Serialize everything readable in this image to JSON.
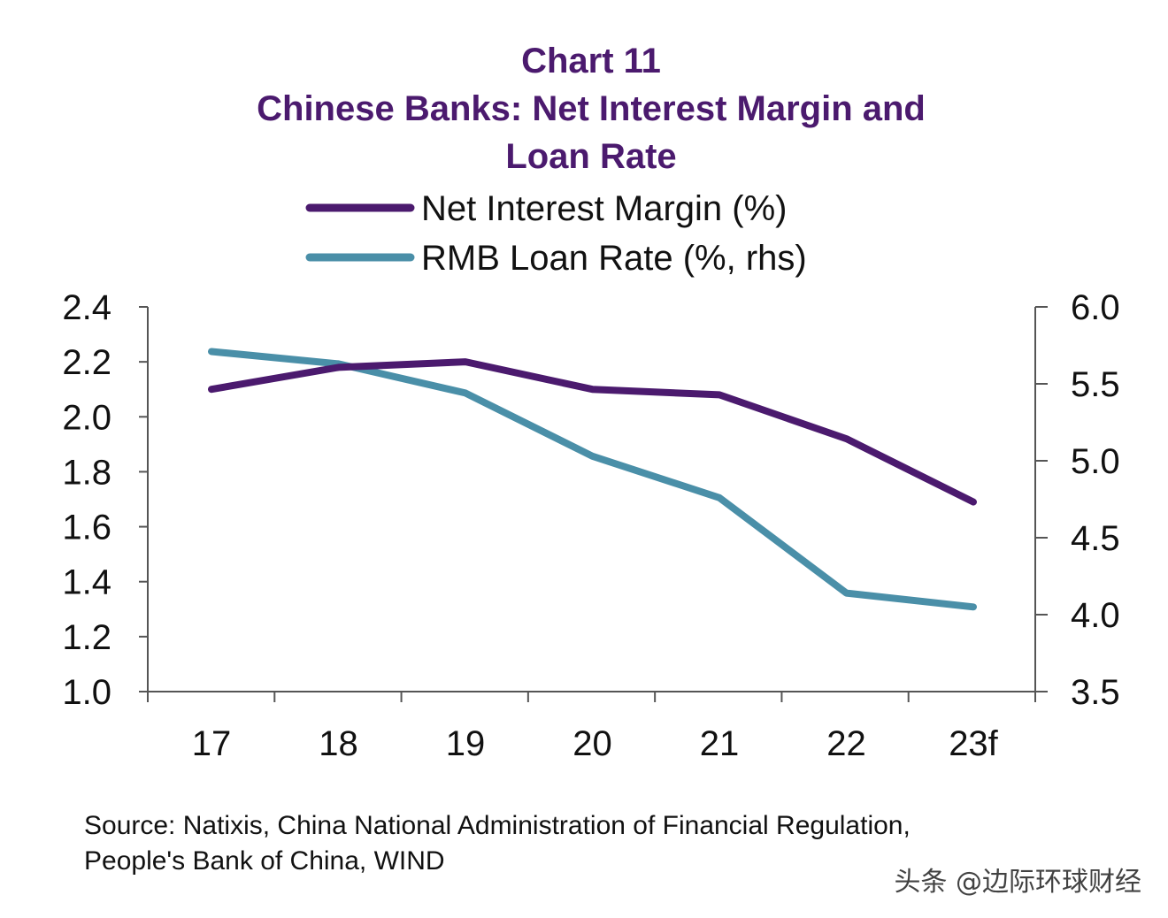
{
  "chart_data": {
    "type": "line",
    "title_lines": [
      "Chart 11",
      "Chinese Banks: Net Interest Margin and",
      "Loan Rate"
    ],
    "categories": [
      "17",
      "18",
      "19",
      "20",
      "21",
      "22",
      "23f"
    ],
    "series": [
      {
        "name": "Net Interest Margin (%)",
        "axis": "left",
        "color": "#4b1a6e",
        "values": [
          2.1,
          2.18,
          2.2,
          2.1,
          2.08,
          1.92,
          1.69
        ]
      },
      {
        "name": "RMB Loan Rate (%, rhs)",
        "axis": "right",
        "color": "#4a8fa8",
        "values": [
          5.71,
          5.63,
          5.44,
          5.03,
          4.76,
          4.14,
          4.05
        ]
      }
    ],
    "y_left": {
      "min": 1.0,
      "max": 2.4,
      "ticks": [
        "1.0",
        "1.2",
        "1.4",
        "1.6",
        "1.8",
        "2.0",
        "2.2",
        "2.4"
      ]
    },
    "y_right": {
      "min": 3.5,
      "max": 6.0,
      "ticks": [
        "3.5",
        "4.0",
        "4.5",
        "5.0",
        "5.5",
        "6.0"
      ]
    },
    "grid": false,
    "legend_position": "top-center"
  },
  "source": {
    "line1": "Source: Natixis, China National Administration of Financial Regulation,",
    "line2": "People's Bank of China, WIND"
  },
  "watermark": "头条 @边际环球财经"
}
